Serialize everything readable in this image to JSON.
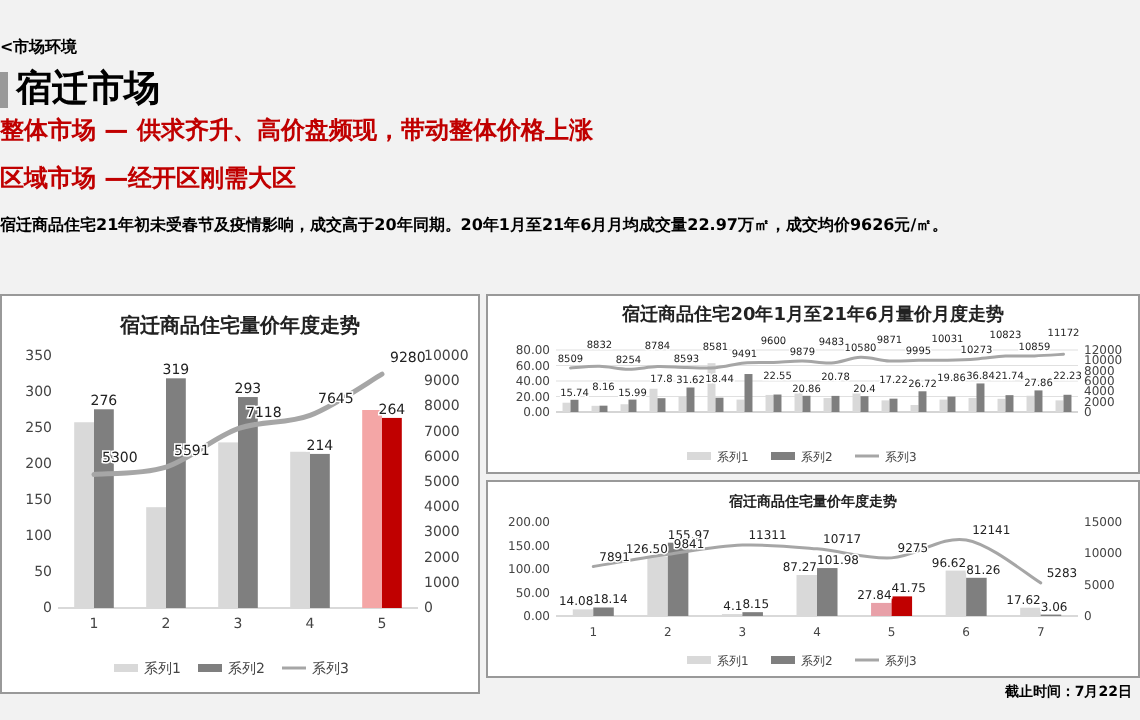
{
  "chart_data": [
    {
      "type": "other",
      "title": "宿迁市场",
      "annotations": [
        "<市场环境",
        "整体市场 — 供求齐升、高价盘频现，带动整体价格上涨",
        "区域市场 —经开区刚需大区",
        "宿迁商品住宅21年初未受春节及疫情影响，成交高于20年同期。20年1月至21年6月月均成交量22.97万㎡，成交均价9626元/㎡。",
        "截止时间：7月22日"
      ]
    },
    {
      "type": "bar",
      "title": "宿迁商品住宅量价年度走势",
      "categories": [
        "1",
        "2",
        "3",
        "4",
        "5"
      ],
      "ylim": [
        0,
        350
      ],
      "yticks": [
        0,
        50,
        100,
        150,
        200,
        250,
        300,
        350
      ],
      "y2lim": [
        0,
        10000
      ],
      "y2ticks": [
        0,
        1000,
        2000,
        3000,
        4000,
        5000,
        6000,
        7000,
        8000,
        9000,
        10000
      ],
      "legend": "bottom",
      "series": [
        {
          "name": "系列1",
          "color": "#d9d9d9",
          "colors": [
            "#d9d9d9",
            "#d9d9d9",
            "#d9d9d9",
            "#d9d9d9",
            "#f4a6a6"
          ],
          "values": [
            258,
            140,
            230,
            217,
            275
          ]
        },
        {
          "name": "系列2",
          "color": "#7f7f7f",
          "colors": [
            "#7f7f7f",
            "#7f7f7f",
            "#7f7f7f",
            "#7f7f7f",
            "#c00000"
          ],
          "values": [
            276,
            319,
            293,
            214,
            264
          ],
          "value_labels": [
            "276",
            "319",
            "293",
            "214",
            "264"
          ]
        },
        {
          "name": "系列3",
          "type": "line",
          "axis": "y2",
          "color": "#a6a6a6",
          "values": [
            5300,
            5591,
            7118,
            7645,
            9280
          ],
          "value_labels": [
            "5300",
            "5591",
            "7118",
            "7645",
            "9280"
          ]
        }
      ]
    },
    {
      "type": "bar",
      "title": "宿迁商品住宅20年1月至21年6月量价月度走势",
      "categories": [
        null,
        null,
        null,
        null,
        null,
        null,
        null,
        null,
        null,
        null,
        null,
        null,
        null,
        null,
        null,
        null,
        null,
        null
      ],
      "ylim": [
        0,
        80
      ],
      "yticks": [
        {
          "value": 0,
          "label": "0.00"
        },
        {
          "value": 20,
          "label": "20.00"
        },
        {
          "value": 40,
          "label": "40.00"
        },
        {
          "value": 60,
          "label": "60.00"
        },
        {
          "value": 80,
          "label": "80.00"
        }
      ],
      "y2lim": [
        0,
        12000
      ],
      "y2ticks": [
        0,
        2000,
        4000,
        6000,
        8000,
        10000,
        12000
      ],
      "grid": "y",
      "legend": "bottom",
      "series": [
        {
          "name": "系列1",
          "color": "#d9d9d9",
          "values": [
            12,
            8,
            10,
            30,
            20,
            63,
            16,
            22,
            28,
            18,
            27,
            15,
            9,
            16,
            18,
            17,
            21,
            15
          ]
        },
        {
          "name": "系列2",
          "color": "#7f7f7f",
          "values": [
            15.74,
            8.16,
            15.99,
            17.8,
            31.62,
            18.44,
            49,
            22.55,
            20.86,
            20.78,
            20.4,
            17.22,
            26.72,
            19.86,
            36.84,
            21.74,
            27.86,
            22.23
          ],
          "value_labels": [
            "15.74",
            "8.16",
            "15.99",
            "17.8",
            "31.62",
            "18.44",
            null,
            "22.55",
            "20.86",
            "20.78",
            "20.4",
            "17.22",
            "26.72",
            "19.86",
            "36.84",
            "21.74",
            "27.86",
            "22.23"
          ]
        },
        {
          "name": "系列3",
          "type": "line",
          "axis": "y2",
          "color": "#a6a6a6",
          "values": [
            8509,
            8832,
            8254,
            8784,
            8593,
            8581,
            9491,
            9600,
            9879,
            9483,
            10580,
            9871,
            9995,
            10031,
            10273,
            10823,
            10859,
            11172
          ],
          "value_labels": [
            "8509",
            "8832",
            "8254",
            "8784",
            "8593",
            "8581",
            "9491",
            "9600",
            "9879",
            "9483",
            "10580",
            "9871",
            "9995",
            "10031",
            "10273",
            "10823",
            "10859",
            "11172"
          ]
        }
      ]
    },
    {
      "type": "bar",
      "title": "宿迁商品住宅量价年度走势",
      "categories": [
        "1",
        "2",
        "3",
        "4",
        "5",
        "6",
        "7"
      ],
      "ylim": [
        0,
        200
      ],
      "yticks": [
        {
          "value": 0,
          "label": "0.00"
        },
        {
          "value": 50,
          "label": "50.00"
        },
        {
          "value": 100,
          "label": "100.00"
        },
        {
          "value": 150,
          "label": "150.00"
        },
        {
          "value": 200,
          "label": "200.00"
        }
      ],
      "y2lim": [
        0,
        15000
      ],
      "y2ticks": [
        0,
        5000,
        10000,
        15000
      ],
      "legend": "bottom",
      "series": [
        {
          "name": "系列1",
          "color": "#d9d9d9",
          "colors": [
            "#d9d9d9",
            "#d9d9d9",
            "#d9d9d9",
            "#d9d9d9",
            "#e8a0a8",
            "#d9d9d9",
            "#d9d9d9"
          ],
          "values": [
            14.08,
            126.5,
            4.1,
            87.27,
            27.84,
            96.62,
            17.62
          ],
          "value_labels": [
            "14.08",
            "126.50",
            "4.1",
            "87.27",
            "27.84",
            "96.62",
            "17.62"
          ]
        },
        {
          "name": "系列2",
          "color": "#7f7f7f",
          "colors": [
            "#7f7f7f",
            "#7f7f7f",
            "#7f7f7f",
            "#7f7f7f",
            "#c00000",
            "#7f7f7f",
            "#7f7f7f"
          ],
          "values": [
            18.14,
            155.97,
            8.15,
            101.98,
            41.75,
            81.26,
            3.06
          ],
          "value_labels": [
            "18.14",
            "155.97",
            "8.15",
            "101.98",
            "41.75",
            "81.26",
            "3.06"
          ]
        },
        {
          "name": "系列3",
          "type": "line",
          "axis": "y2",
          "color": "#a6a6a6",
          "values": [
            7891,
            9841,
            11311,
            10717,
            9275,
            12141,
            5283
          ],
          "value_labels": [
            "7891",
            "9841",
            "11311",
            "10717",
            "9275",
            "12141",
            "5283"
          ]
        }
      ]
    }
  ]
}
